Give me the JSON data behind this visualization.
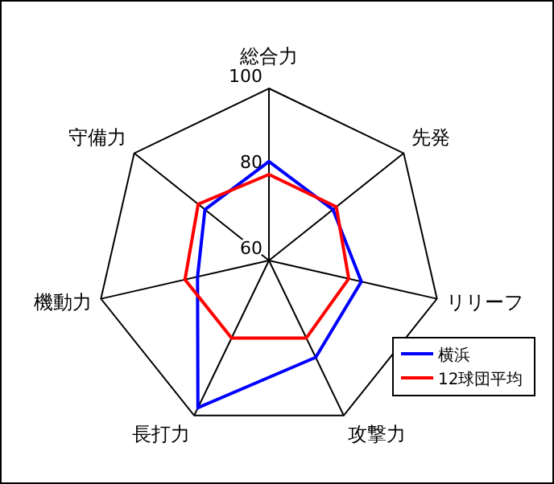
{
  "chart_data": {
    "type": "radar",
    "categories": [
      "総合力",
      "先発",
      "リリーフ",
      "攻撃力",
      "長打力",
      "機動力",
      "守備力"
    ],
    "series": [
      {
        "name": "横浜",
        "color": "#0000ff",
        "values": [
          83,
          79,
          82,
          85,
          98,
          77,
          79
        ]
      },
      {
        "name": "12球団平均",
        "color": "#ff0000",
        "values": [
          80,
          80,
          79,
          80,
          80,
          80,
          81
        ]
      }
    ],
    "ylim": [
      60,
      100
    ],
    "yticks": [
      60,
      80,
      100
    ],
    "legend": "bottom right"
  }
}
